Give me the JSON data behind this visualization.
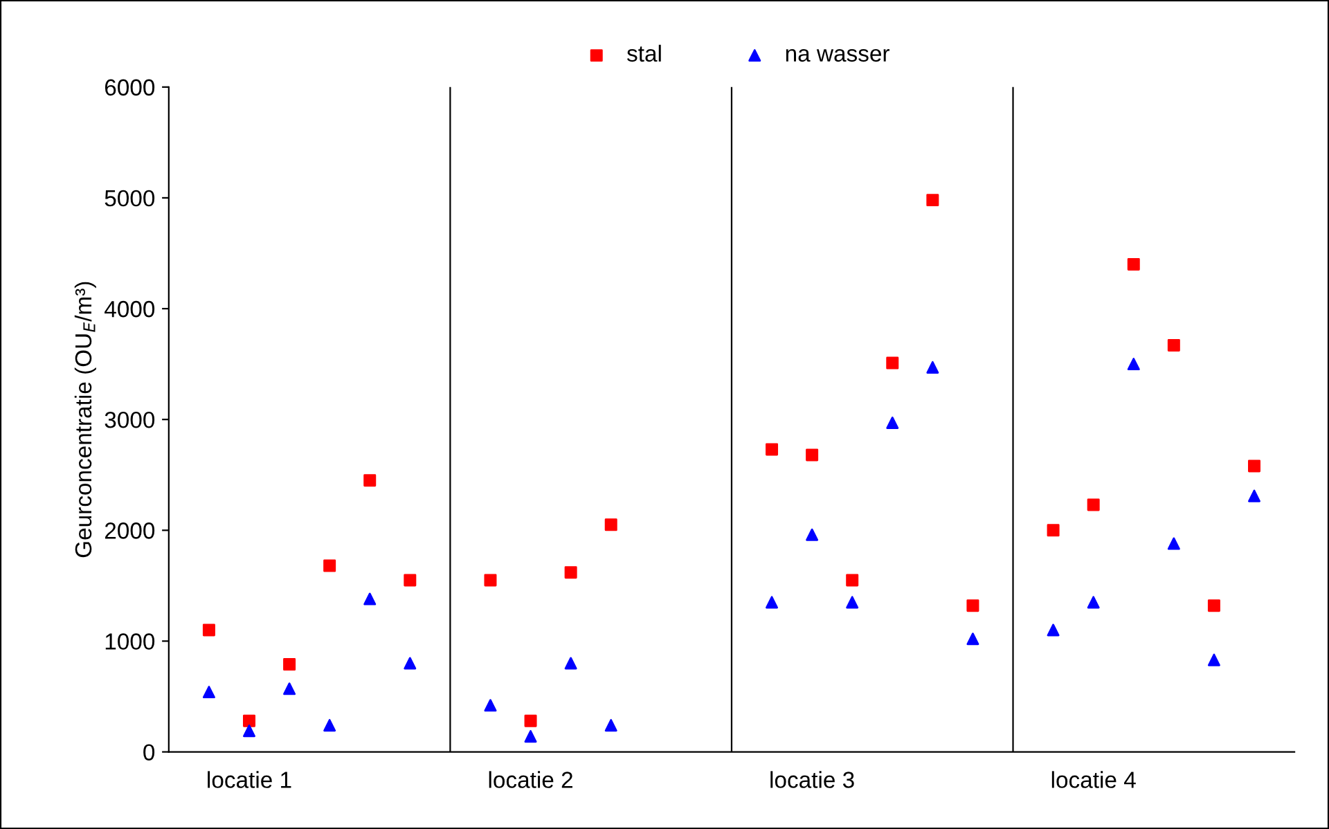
{
  "chart_data": {
    "type": "scatter",
    "ylabel": "Geurconcentratie (OU$_{E}$/m³)",
    "categories": [
      null,
      null,
      "locatie 1",
      null,
      null,
      null,
      null,
      null,
      null,
      "locatie 2",
      null,
      null,
      null,
      null,
      null,
      null,
      "locatie 3",
      null,
      null,
      null,
      null,
      null,
      null,
      "locatie 4",
      null,
      null,
      null,
      null
    ],
    "ylim": [
      0,
      6000
    ],
    "yticks": [
      0,
      1000,
      2000,
      3000,
      4000,
      5000,
      6000
    ],
    "grid": "x",
    "legend": "top",
    "series": [
      {
        "name": "stal",
        "color": "#ff0000",
        "marker": "square",
        "values": [
          null,
          1100,
          280,
          790,
          1680,
          2450,
          1550,
          null,
          1550,
          280,
          1620,
          2050,
          null,
          null,
          null,
          2730,
          2680,
          1550,
          3510,
          4980,
          1320,
          null,
          2000,
          2230,
          4400,
          3670,
          1320,
          2580
        ]
      },
      {
        "name": "na wasser",
        "color": "#0000ff",
        "marker": "triangle",
        "values": [
          null,
          540,
          190,
          570,
          240,
          1380,
          800,
          null,
          420,
          140,
          800,
          240,
          null,
          null,
          null,
          1350,
          1960,
          1350,
          2970,
          3470,
          1020,
          null,
          1100,
          1350,
          3500,
          1880,
          830,
          2310
        ]
      }
    ]
  }
}
